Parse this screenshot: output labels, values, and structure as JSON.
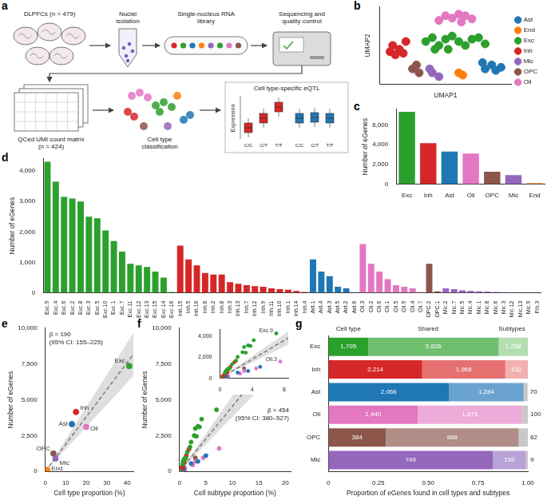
{
  "diagram": {
    "panel": "a",
    "steps": [
      "DLPFCs (n = 479)",
      "Nuclei isolation",
      "Single-nucleus RNA library",
      "Sequencing and quality control",
      "QCed UMI count matrix (n = 424)",
      "Cell type classification",
      "Cell type-specific eQTL"
    ],
    "axis_label": "Expression",
    "genotypes": [
      "C/C",
      "C/T",
      "T/T"
    ]
  },
  "chart_data": [
    {
      "panel": "b",
      "type": "scatter",
      "xlabel": "UMAP1",
      "ylabel": "UMAP2",
      "xlim": [
        0,
        100
      ],
      "ylim": [
        0,
        100
      ],
      "tick_labels": false,
      "grid": false,
      "legend": "right",
      "series": [
        {
          "name": "Ast",
          "color": "#1f77b4",
          "x": [
            80,
            85,
            88,
            78,
            92
          ],
          "y": [
            20,
            25,
            18,
            28,
            22
          ]
        },
        {
          "name": "End",
          "color": "#ff7f0e",
          "x": [
            60,
            63
          ],
          "y": [
            15,
            12
          ]
        },
        {
          "name": "Exc",
          "color": "#2ca02c",
          "x": [
            35,
            40,
            45,
            50,
            55,
            60,
            65,
            70,
            75,
            52,
            42,
            80
          ],
          "y": [
            55,
            60,
            50,
            58,
            62,
            55,
            50,
            58,
            60,
            45,
            45,
            52
          ]
        },
        {
          "name": "Inh",
          "color": "#d62728",
          "x": [
            10,
            15,
            12,
            20,
            18,
            8
          ],
          "y": [
            50,
            45,
            38,
            55,
            40,
            42
          ]
        },
        {
          "name": "Mic",
          "color": "#9467bd",
          "x": [
            40,
            45,
            38
          ],
          "y": [
            15,
            10,
            20
          ]
        },
        {
          "name": "OPC",
          "color": "#8c564b",
          "x": [
            25,
            30,
            28
          ],
          "y": [
            20,
            15,
            25
          ]
        },
        {
          "name": "Oli",
          "color": "#e377c2",
          "x": [
            55,
            60,
            65,
            70,
            62,
            50,
            45
          ],
          "y": [
            85,
            90,
            88,
            84,
            80,
            88,
            82
          ]
        }
      ]
    },
    {
      "panel": "c",
      "type": "bar",
      "ylabel": "Number of eGenes",
      "categories": [
        "Exc",
        "Inh",
        "Ast",
        "Oli",
        "OPC",
        "Mic",
        "End"
      ],
      "values": [
        7350,
        4150,
        3300,
        3100,
        1250,
        900,
        100
      ],
      "colors": [
        "#2ca02c",
        "#d62728",
        "#1f77b4",
        "#e377c2",
        "#8c564b",
        "#9467bd",
        "#ff7f0e"
      ],
      "ylim": [
        0,
        7600
      ],
      "yticks": [
        0,
        {
          "value": 2000,
          "label": "2,000"
        },
        {
          "value": 4000,
          "label": "4,000"
        },
        {
          "value": 6000,
          "label": "6,000"
        }
      ],
      "grid": false
    },
    {
      "panel": "d",
      "type": "bar",
      "ylabel": "Number of eGenes",
      "categories": [
        "Exc.9",
        "Exc.4",
        "Exc.6",
        "Exc.2",
        "Exc.8",
        "Exc.3",
        "Exc.5",
        "Exc.10",
        "Exc.1",
        "Exc.7",
        "Exc.11",
        "Exc.12",
        "Exc.13",
        "Exc.15",
        "Exc.14",
        "Exc.16",
        "Inh.15",
        "Inh.5",
        "Inh.16",
        "Inh.6",
        "Inh.2",
        "Inh.8",
        "Inh.3",
        "Inh.13",
        "Inh.7",
        "Inh.12",
        "Inh.9",
        "Inh.11",
        "Inh.10",
        "Inh.1",
        "Inh.14",
        "Inh.4",
        "Ast.1",
        "Ast.4",
        "Ast.3",
        "Ast.5",
        "Ast.2",
        "Ast.6",
        "Oli.3",
        "Oli.2",
        "Oli.6",
        "Oli.1",
        "Oli.5",
        "Oli.9",
        "Oli.4",
        "Oli.7",
        "OPC.2",
        "OPC.1",
        "Mic.2",
        "Mic.7",
        "Mic.5",
        "Mic.4",
        "Mic.1",
        "Mic.8",
        "Mic.6",
        "Mic.3",
        "Mic.12",
        "Mic.13",
        "Mic.9",
        "Fib.3"
      ],
      "values": [
        4300,
        3650,
        3150,
        3100,
        3000,
        2500,
        2450,
        2050,
        1700,
        1350,
        950,
        900,
        850,
        700,
        500,
        30,
        1550,
        1100,
        900,
        650,
        600,
        600,
        350,
        300,
        250,
        220,
        200,
        150,
        120,
        100,
        60,
        30,
        1100,
        700,
        550,
        200,
        150,
        20,
        1600,
        950,
        700,
        450,
        250,
        200,
        150,
        30,
        950,
        50,
        150,
        120,
        80,
        60,
        50,
        40,
        30,
        20,
        15,
        10,
        5,
        5
      ],
      "colors": [
        "#2ca02c",
        "#2ca02c",
        "#2ca02c",
        "#2ca02c",
        "#2ca02c",
        "#2ca02c",
        "#2ca02c",
        "#2ca02c",
        "#2ca02c",
        "#2ca02c",
        "#2ca02c",
        "#2ca02c",
        "#2ca02c",
        "#2ca02c",
        "#2ca02c",
        "#2ca02c",
        "#d62728",
        "#d62728",
        "#d62728",
        "#d62728",
        "#d62728",
        "#d62728",
        "#d62728",
        "#d62728",
        "#d62728",
        "#d62728",
        "#d62728",
        "#d62728",
        "#d62728",
        "#d62728",
        "#d62728",
        "#d62728",
        "#1f77b4",
        "#1f77b4",
        "#1f77b4",
        "#1f77b4",
        "#1f77b4",
        "#1f77b4",
        "#e377c2",
        "#e377c2",
        "#e377c2",
        "#e377c2",
        "#e377c2",
        "#e377c2",
        "#e377c2",
        "#e377c2",
        "#8c564b",
        "#8c564b",
        "#9467bd",
        "#9467bd",
        "#9467bd",
        "#9467bd",
        "#9467bd",
        "#9467bd",
        "#9467bd",
        "#9467bd",
        "#9467bd",
        "#9467bd",
        "#9467bd",
        "#7f7f7f"
      ],
      "ylim": [
        0,
        4400
      ],
      "yticks": [
        0,
        {
          "value": 1000,
          "label": "1,000"
        },
        {
          "value": 2000,
          "label": "2,000"
        },
        {
          "value": 3000,
          "label": "3,000"
        },
        {
          "value": 4000,
          "label": "4,000"
        }
      ],
      "grid": false
    },
    {
      "panel": "e",
      "type": "scatter",
      "xlabel": "Cell type proportion (%)",
      "ylabel": "Number of eGenes",
      "xlim": [
        0,
        43
      ],
      "ylim": [
        0,
        10000
      ],
      "xticks": [
        0,
        10,
        20,
        30,
        40
      ],
      "yticks": [
        0,
        {
          "value": 2500,
          "label": "2,500"
        },
        {
          "value": 5000,
          "label": "5,000"
        },
        {
          "value": 7500,
          "label": "7,500"
        },
        {
          "value": 10000,
          "label": "10,000"
        }
      ],
      "grid": false,
      "points": {
        "x": [
          41,
          15,
          13,
          20,
          4,
          5,
          1
        ],
        "y": [
          7350,
          4150,
          3300,
          3100,
          1250,
          900,
          100
        ],
        "labels": [
          "Exc",
          "Inh",
          "Ast",
          "Oli",
          "OPC",
          "Mic",
          "End"
        ],
        "colors": [
          "#2ca02c",
          "#d62728",
          "#1f77b4",
          "#e377c2",
          "#8c564b",
          "#9467bd",
          "#ff7f0e"
        ]
      },
      "fit": {
        "x": [
          0,
          43
        ],
        "y": [
          0,
          8170
        ],
        "lower": [
          0,
          6665
        ],
        "upper": [
          0,
          9675
        ],
        "line_style": "dashed"
      },
      "annotations": [
        "β = 190",
        "(95% CI: 155–225)"
      ]
    },
    {
      "panel": "f",
      "type": "scatter",
      "xlabel": "Cell subtype proportion (%)",
      "ylabel": "Number of eGenes",
      "xlim": [
        0,
        21
      ],
      "ylim": [
        0,
        10000
      ],
      "xticks": [
        0,
        5,
        10,
        15,
        20
      ],
      "yticks": [
        0,
        {
          "value": 2500,
          "label": "2,500"
        },
        {
          "value": 5000,
          "label": "5,000"
        },
        {
          "value": 7500,
          "label": "7,500"
        },
        {
          "value": 10000,
          "label": "10,000"
        }
      ],
      "grid": false,
      "series": [
        {
          "color": "#2ca02c",
          "x": [
            7,
            4.2,
            3.5,
            3.8,
            3.0,
            2.8,
            3.2,
            2.2,
            2.0,
            1.5,
            1.2,
            1.0,
            0.9,
            0.7,
            0.6,
            0.1
          ],
          "y": [
            4300,
            3650,
            3150,
            3100,
            3000,
            2500,
            2450,
            2050,
            1700,
            1350,
            950,
            900,
            850,
            700,
            500,
            30
          ]
        },
        {
          "color": "#d62728",
          "x": [
            1.8,
            1.3,
            1.1,
            0.9,
            0.9,
            0.8,
            0.6,
            0.5,
            0.5,
            0.4,
            0.4,
            0.3,
            0.3,
            0.2,
            0.2,
            0.1
          ],
          "y": [
            1550,
            1100,
            900,
            650,
            600,
            600,
            350,
            300,
            250,
            220,
            200,
            150,
            120,
            100,
            60,
            30
          ]
        },
        {
          "color": "#1f77b4",
          "x": [
            5.0,
            3.5,
            2.2,
            0.8,
            0.7,
            0.1
          ],
          "y": [
            1100,
            700,
            550,
            200,
            150,
            20
          ]
        },
        {
          "color": "#e377c2",
          "x": [
            7.5,
            4.5,
            3.0,
            2.5,
            1.0,
            0.8,
            0.6,
            0.2
          ],
          "y": [
            1600,
            950,
            700,
            450,
            250,
            200,
            150,
            30
          ]
        },
        {
          "color": "#8c564b",
          "x": [
            3.0,
            0.5
          ],
          "y": [
            950,
            50
          ]
        },
        {
          "color": "#9467bd",
          "x": [
            1.0,
            0.8,
            0.5,
            0.4,
            0.3,
            0.2,
            0.2,
            0.1,
            0.1,
            0.1,
            0.05
          ],
          "y": [
            150,
            120,
            80,
            60,
            50,
            40,
            30,
            20,
            15,
            10,
            5
          ]
        }
      ],
      "fit": {
        "x": [
          0,
          22
        ],
        "y": [
          0,
          9988
        ],
        "lower": [
          0,
          8360
        ],
        "upper": [
          0,
          11594
        ],
        "line_style": "dashed"
      },
      "annotations": [
        "β = 454",
        "(95% CI: 380–527)"
      ],
      "inset": {
        "xlim": [
          0,
          8.5
        ],
        "ylim": [
          0,
          4700
        ],
        "xticks": [
          0,
          4,
          8
        ],
        "yticks": [
          0,
          {
            "value": 2000,
            "label": "2,000"
          },
          {
            "value": 4000,
            "label": "4,000"
          }
        ],
        "labels": [
          {
            "text": "Exc.9",
            "x": 7,
            "y": 4300
          },
          {
            "text": "Oli.3",
            "x": 7.5,
            "y": 1600
          }
        ]
      }
    },
    {
      "panel": "g",
      "type": "bar",
      "orientation": "horizontal",
      "stacked": true,
      "xlabel": "Proportion of eGenes found in cell types and subtypes",
      "categories": [
        "Exc",
        "Inh",
        "Ast",
        "Oli",
        "OPC",
        "Mic"
      ],
      "xlim": [
        0,
        1
      ],
      "xticks": [
        0,
        {
          "value": 0.25,
          "label": "0.25"
        },
        {
          "value": 0.5,
          "label": "0.50"
        },
        {
          "value": 0.75,
          "label": "0.75"
        },
        {
          "value": 1,
          "label": "1.00"
        }
      ],
      "grid": false,
      "series": [
        {
          "name": "Cell type",
          "colors": [
            "#2ca02c",
            "#d62728",
            "#1f77b4",
            "#e377c2",
            "#8c564b",
            "#9467bd"
          ],
          "values": [
            0.199,
            0.47,
            0.604,
            0.448,
            0.288,
            0.825
          ],
          "count_labels": [
            "1,705",
            "2,214",
            "2,066",
            "1,440",
            "384",
            "749"
          ]
        },
        {
          "name": "Shared",
          "colors": [
            "#6fbf6f",
            "#e47070",
            "#6aa3d0",
            "#eeaad8",
            "#b08d86",
            "#b9a2d6"
          ],
          "values": [
            0.655,
            0.417,
            0.375,
            0.521,
            0.666,
            0.165
          ],
          "count_labels": [
            "5,626",
            "1,968",
            "1,284",
            "1,675",
            "888",
            "150"
          ]
        },
        {
          "name": "Subtypes",
          "colors": [
            "#b3deb0",
            "#f2b0b0",
            "#c8c8c8",
            "#c8c8c8",
            "#c8c8c8",
            "#c8c8c8"
          ],
          "values": [
            0.146,
            0.113,
            0.02,
            0.031,
            0.046,
            0.01
          ],
          "count_labels": [
            "1,258",
            "532",
            "70",
            "100",
            "62",
            "9"
          ]
        }
      ]
    }
  ]
}
